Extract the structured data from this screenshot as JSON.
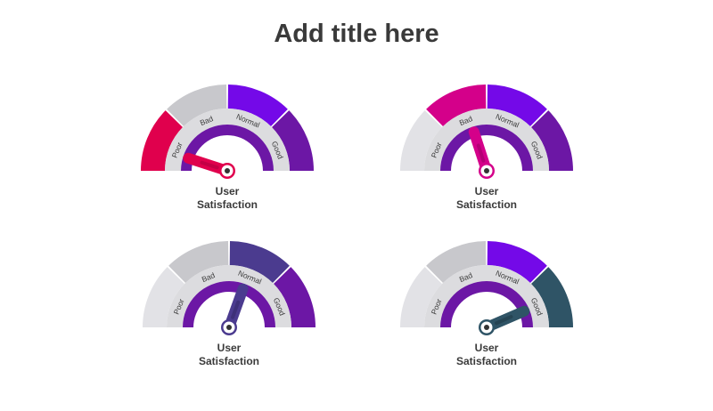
{
  "title": "Add title here",
  "zone_labels": [
    "Poor",
    "Bad",
    "Normal",
    "Good"
  ],
  "gauges": [
    {
      "label_line1": "User",
      "label_line2": "Satisfaction",
      "highlight_zone": "Poor",
      "needle_value": 0.1,
      "segment_colors": [
        "#e0004d",
        "#c8c8cc",
        "#7409e8",
        "#6c17a5"
      ],
      "needle_color": "#e0004d",
      "needle_dark_color": "#b00040"
    },
    {
      "label_line1": "User",
      "label_line2": "Satisfaction",
      "highlight_zone": "Bad",
      "needle_value": 0.4,
      "segment_colors": [
        "#e2e2e6",
        "#d4008a",
        "#7409e8",
        "#6c17a5"
      ],
      "needle_color": "#d4008a",
      "needle_dark_color": "#a00068"
    },
    {
      "label_line1": "User",
      "label_line2": "Satisfaction",
      "highlight_zone": "Normal",
      "needle_value": 0.61,
      "segment_colors": [
        "#e2e2e6",
        "#c8c8cc",
        "#4b3b8f",
        "#6c17a5"
      ],
      "needle_color": "#4b3b8f",
      "needle_dark_color": "#362a6b"
    },
    {
      "label_line1": "User",
      "label_line2": "Satisfaction",
      "highlight_zone": "Good",
      "needle_value": 0.87,
      "segment_colors": [
        "#e2e2e6",
        "#c8c8cc",
        "#7409e8",
        "#2f5466"
      ],
      "needle_color": "#2f5466",
      "needle_dark_color": "#1f3a47"
    }
  ],
  "colors": {
    "inner_band": "#dcdcdf",
    "inner_arc": "#6c17a5",
    "hub_ring": "#ffffff",
    "hub_dot": "#333333",
    "label_text": "#3a3a3a"
  }
}
